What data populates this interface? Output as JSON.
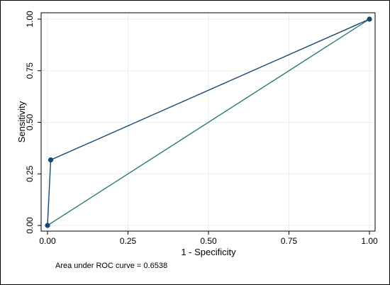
{
  "chart_data": {
    "type": "line",
    "xlabel": "1 - Specificity",
    "ylabel": "Sensitivity",
    "xlim": [
      0,
      1
    ],
    "ylim": [
      0,
      1
    ],
    "x_ticks": [
      "0.00",
      "0.25",
      "0.50",
      "0.75",
      "1.00"
    ],
    "y_ticks": [
      "0.00",
      "0.25",
      "0.50",
      "0.75",
      "1.00"
    ],
    "grid": true,
    "note": "Area under ROC curve = 0.6538",
    "series": [
      {
        "role": "roc-curve",
        "color": "#1a476f",
        "markers": true,
        "x": [
          0.0,
          0.01,
          1.0
        ],
        "y": [
          0.0,
          0.3175,
          1.0
        ]
      },
      {
        "role": "reference-line",
        "color": "#2b7d77",
        "markers": false,
        "x": [
          0.0,
          1.0
        ],
        "y": [
          0.0,
          1.0
        ]
      }
    ]
  },
  "colors": {
    "background": "#ffffff",
    "border": "#000000",
    "plot_frame": "#000000",
    "grid": "#e7efee"
  }
}
